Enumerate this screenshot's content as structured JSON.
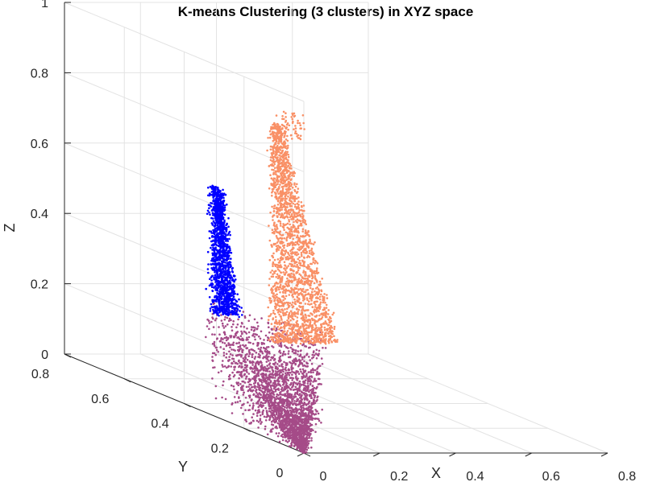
{
  "chart_data": {
    "type": "scatter",
    "title": "K-means Clustering (3 clusters) in XYZ space",
    "xlabel": "X",
    "ylabel": "Y",
    "zlabel": "Z",
    "xlim": [
      0,
      0.8
    ],
    "ylim": [
      0,
      0.8
    ],
    "zlim": [
      0,
      1
    ],
    "xticks": [
      "0",
      "0.2",
      "0.4",
      "0.6",
      "0.8"
    ],
    "yticks": [
      "0",
      "0.2",
      "0.4",
      "0.6",
      "0.8"
    ],
    "zticks": [
      "0",
      "0.2",
      "0.4",
      "0.6",
      "0.8",
      "1"
    ],
    "grid": true,
    "view": "3d",
    "clusters": [
      {
        "color": "#0000ff",
        "x_range": [
          0.0,
          0.08
        ],
        "y_range": [
          0.26,
          0.4
        ],
        "z_range": [
          0.29,
          0.66
        ]
      },
      {
        "color": "#f99066",
        "x_range": [
          0.12,
          0.31
        ],
        "y_range": [
          0.24,
          0.34
        ],
        "z_range": [
          0.22,
          0.86
        ]
      },
      {
        "color": "#a54b88",
        "x_range": [
          0.0,
          0.32
        ],
        "y_range": [
          0.0,
          0.35
        ],
        "z_range": [
          0.0,
          0.35
        ]
      }
    ]
  }
}
